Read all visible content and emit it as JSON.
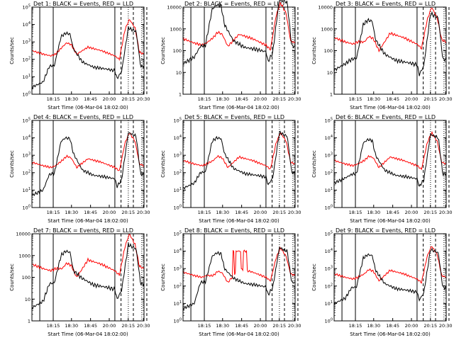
{
  "chart_data": [
    {
      "type": "line",
      "title": "Det 1: BLACK = Events, RED = LLD",
      "ylabel": "Counts/sec",
      "xlabel": "Start Time (06-Mar-04 18:02:00)",
      "x_ticks": [
        "18:15",
        "18:30",
        "18:45",
        "20:00",
        "20:15",
        "20:30"
      ],
      "y_ticks": [
        "10^0",
        "10^1",
        "10^2",
        "10^3",
        "10^4",
        "10^5"
      ],
      "ylim_log10": [
        0,
        5
      ],
      "shape": 1,
      "lld_top": 4.3,
      "ev_top": 3.5,
      "lld_base": 2.3,
      "ev_base": 1.6,
      "ev_min": 0.4,
      "series": [
        {
          "name": "BLACK = Events",
          "color": "#000000"
        },
        {
          "name": "RED = LLD",
          "color": "#ff0000"
        }
      ]
    },
    {
      "type": "line",
      "title": "Det 2: BLACK = Events, RED = LLD",
      "ylabel": "Counts/sec",
      "xlabel": "Start Time (06-Mar-04 18:02:00)",
      "x_ticks": [
        "18:15",
        "18:30",
        "18:45",
        "20:00",
        "20:15",
        "20:30"
      ],
      "y_ticks": [
        "1",
        "10",
        "100",
        "1000",
        "10000"
      ],
      "ylim_log10": [
        0,
        4
      ],
      "shape": 2,
      "lld_top": 4.2,
      "ev_top": 4.1,
      "lld_base": 2.35,
      "ev_base": 2.2,
      "ev_min": 1.4,
      "series": [
        {
          "name": "BLACK = Events",
          "color": "#000000"
        },
        {
          "name": "RED = LLD",
          "color": "#ff0000"
        }
      ]
    },
    {
      "type": "line",
      "title": "Det 3: BLACK = Events, RED = LLD",
      "ylabel": "Counts/sec",
      "xlabel": "Start Time (06-Mar-04 18:02:00)",
      "x_ticks": [
        "18:15",
        "18:30",
        "18:45",
        "20:00",
        "20:15",
        "20:30"
      ],
      "y_ticks": [
        "1",
        "10",
        "100",
        "1000",
        "10000"
      ],
      "ylim_log10": [
        0,
        4
      ],
      "shape": 1,
      "lld_top": 4.0,
      "ev_top": 3.4,
      "lld_base": 2.4,
      "ev_base": 1.6,
      "ev_min": 1.1,
      "series": [
        {
          "name": "BLACK = Events",
          "color": "#000000"
        },
        {
          "name": "RED = LLD",
          "color": "#ff0000"
        }
      ]
    },
    {
      "type": "line",
      "title": "Det 4: BLACK = Events, RED = LLD",
      "ylabel": "Counts/sec",
      "xlabel": "Start Time (06-Mar-04 18:02:00)",
      "x_ticks": [
        "18:15",
        "18:30",
        "18:45",
        "20:00",
        "20:15",
        "20:30"
      ],
      "y_ticks": [
        "10^0",
        "10^1",
        "10^2",
        "10^3",
        "10^4",
        "10^5"
      ],
      "ylim_log10": [
        0,
        5
      ],
      "shape": 1,
      "lld_top": 4.3,
      "ev_top": 4.0,
      "lld_base": 2.4,
      "ev_base": 1.9,
      "ev_min": 0.7,
      "series": [
        {
          "name": "BLACK = Events",
          "color": "#000000"
        },
        {
          "name": "RED = LLD",
          "color": "#ff0000"
        }
      ]
    },
    {
      "type": "line",
      "title": "Det 5: BLACK = Events, RED = LLD",
      "ylabel": "Counts/sec",
      "xlabel": "Start Time (06-Mar-04 18:02:00)",
      "x_ticks": [
        "18:15",
        "18:30",
        "18:45",
        "20:00",
        "20:15",
        "20:30"
      ],
      "y_ticks": [
        "10^0",
        "10^1",
        "10^2",
        "10^3",
        "10^4",
        "10^5"
      ],
      "ylim_log10": [
        0,
        5
      ],
      "shape": 1,
      "lld_top": 4.3,
      "ev_top": 4.0,
      "lld_base": 2.5,
      "ev_base": 2.0,
      "ev_min": 1.1,
      "series": [
        {
          "name": "BLACK = Events",
          "color": "#000000"
        },
        {
          "name": "RED = LLD",
          "color": "#ff0000"
        }
      ]
    },
    {
      "type": "line",
      "title": "Det 6: BLACK = Events, RED = LLD",
      "ylabel": "Counts/sec",
      "xlabel": "Start Time (06-Mar-04 18:02:00)",
      "x_ticks": [
        "18:15",
        "18:30",
        "18:45",
        "20:00",
        "20:15",
        "20:30"
      ],
      "y_ticks": [
        "10^0",
        "10^1",
        "10^2",
        "10^3",
        "10^4",
        "10^5"
      ],
      "ylim_log10": [
        0,
        5
      ],
      "shape": 1,
      "lld_top": 4.3,
      "ev_top": 3.9,
      "lld_base": 2.5,
      "ev_base": 1.9,
      "ev_min": 1.4,
      "series": [
        {
          "name": "BLACK = Events",
          "color": "#000000"
        },
        {
          "name": "RED = LLD",
          "color": "#ff0000"
        }
      ]
    },
    {
      "type": "line",
      "title": "Det 7: BLACK = Events, RED = LLD",
      "ylabel": "Counts/sec",
      "xlabel": "Start Time (06-Mar-04 18:02:00)",
      "x_ticks": [
        "18:15",
        "18:30",
        "18:45",
        "20:00",
        "20:15",
        "20:30"
      ],
      "y_ticks": [
        "1",
        "10",
        "100",
        "1000",
        "10000"
      ],
      "ylim_log10": [
        0,
        4
      ],
      "shape": 1,
      "lld_top": 4.0,
      "ev_top": 3.2,
      "lld_base": 2.4,
      "ev_base": 1.7,
      "ev_min": 0.6,
      "series": [
        {
          "name": "BLACK = Events",
          "color": "#000000"
        },
        {
          "name": "RED = LLD",
          "color": "#ff0000"
        }
      ]
    },
    {
      "type": "line",
      "title": "Det 8: BLACK = Events, RED = LLD",
      "ylabel": "Counts/sec",
      "xlabel": "Start Time (06-Mar-04 18:02:00)",
      "x_ticks": [
        "18:15",
        "18:30",
        "18:45",
        "20:00",
        "20:15",
        "20:30"
      ],
      "y_ticks": [
        "10^0",
        "10^1",
        "10^2",
        "10^3",
        "10^4",
        "10^5"
      ],
      "ylim_log10": [
        0,
        5
      ],
      "shape": 3,
      "lld_top": 4.2,
      "ev_top": 3.9,
      "lld_base": 2.6,
      "ev_base": 2.2,
      "ev_min": 0.7,
      "series": [
        {
          "name": "BLACK = Events",
          "color": "#000000"
        },
        {
          "name": "RED = LLD",
          "color": "#ff0000"
        }
      ]
    },
    {
      "type": "line",
      "title": "Det 9: BLACK = Events, RED = LLD",
      "ylabel": "Counts/sec",
      "xlabel": "Start Time (06-Mar-04 18:02:00)",
      "x_ticks": [
        "18:15",
        "18:30",
        "18:45",
        "20:00",
        "20:15",
        "20:30"
      ],
      "y_ticks": [
        "10^0",
        "10^1",
        "10^2",
        "10^3",
        "10^4",
        "10^5"
      ],
      "ylim_log10": [
        0,
        5
      ],
      "shape": 1,
      "lld_top": 4.3,
      "ev_top": 3.8,
      "lld_base": 2.5,
      "ev_base": 1.9,
      "ev_min": 1.0,
      "series": [
        {
          "name": "BLACK = Events",
          "color": "#000000"
        },
        {
          "name": "RED = LLD",
          "color": "#ff0000"
        }
      ]
    }
  ]
}
